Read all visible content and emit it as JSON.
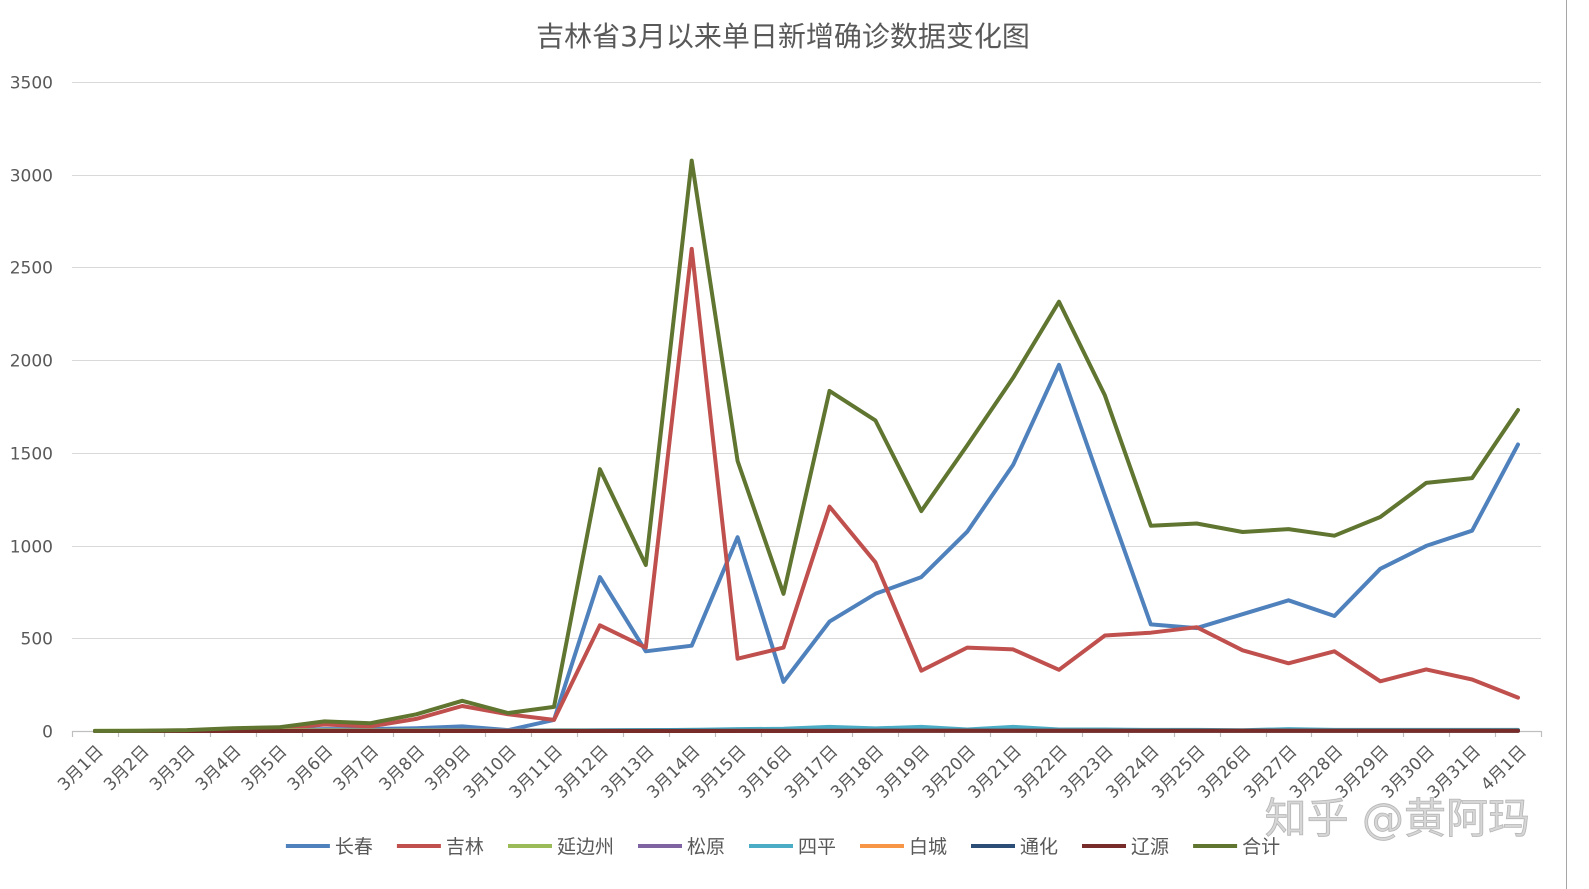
{
  "chart_data": {
    "type": "line",
    "title": "吉林省3月以来单日新增确诊数据变化图",
    "xlabel": "",
    "ylabel": "",
    "ylim": [
      0,
      3500
    ],
    "yticks": [
      0,
      500,
      1000,
      1500,
      2000,
      2500,
      3000,
      3500
    ],
    "grid": true,
    "legend": "bottom",
    "categories": [
      "3月1日",
      "3月2日",
      "3月3日",
      "3月4日",
      "3月5日",
      "3月6日",
      "3月7日",
      "3月8日",
      "3月9日",
      "3月10日",
      "3月11日",
      "3月12日",
      "3月13日",
      "3月14日",
      "3月15日",
      "3月16日",
      "3月17日",
      "3月18日",
      "3月19日",
      "3月20日",
      "3月21日",
      "3月22日",
      "3月23日",
      "3月24日",
      "3月25日",
      "3月26日",
      "3月27日",
      "3月28日",
      "3月29日",
      "3月30日",
      "3月31日",
      "4月1日"
    ],
    "series": [
      {
        "name": "长春",
        "color": "#4f81bd",
        "values": [
          0,
          0,
          1,
          3,
          5,
          10,
          10,
          15,
          25,
          5,
          60,
          830,
          430,
          460,
          1045,
          265,
          590,
          740,
          830,
          1075,
          1435,
          1975,
          1270,
          575,
          555,
          630,
          705,
          620,
          875,
          998,
          1080,
          1545
        ]
      },
      {
        "name": "吉林",
        "color": "#c0504d",
        "values": [
          0,
          0,
          2,
          8,
          12,
          35,
          25,
          65,
          135,
          90,
          60,
          570,
          450,
          2600,
          390,
          450,
          1210,
          910,
          325,
          450,
          440,
          330,
          515,
          530,
          560,
          435,
          365,
          430,
          268,
          332,
          278,
          180
        ]
      },
      {
        "name": "延边州",
        "color": "#9bbb59",
        "values": [
          1,
          1,
          2,
          3,
          3,
          5,
          4,
          5,
          3,
          2,
          4,
          3,
          4,
          6,
          4,
          5,
          6,
          5,
          4,
          3,
          4,
          3,
          3,
          2,
          2,
          2,
          3,
          2,
          2,
          2,
          2,
          2
        ]
      },
      {
        "name": "松原",
        "color": "#8064a2",
        "values": [
          0,
          0,
          0,
          0,
          0,
          1,
          1,
          2,
          1,
          1,
          2,
          2,
          2,
          3,
          3,
          2,
          3,
          3,
          2,
          2,
          2,
          1,
          1,
          1,
          1,
          1,
          1,
          1,
          1,
          1,
          1,
          1
        ]
      },
      {
        "name": "四平",
        "color": "#4bacc6",
        "values": [
          0,
          0,
          0,
          0,
          0,
          0,
          0,
          1,
          0,
          0,
          1,
          3,
          5,
          6,
          10,
          12,
          22,
          14,
          22,
          8,
          22,
          8,
          8,
          6,
          6,
          4,
          10,
          6,
          6,
          6,
          6,
          6
        ]
      },
      {
        "name": "白城",
        "color": "#f79646",
        "values": [
          0,
          0,
          0,
          0,
          0,
          0,
          0,
          0,
          0,
          0,
          0,
          0,
          0,
          0,
          1,
          1,
          1,
          1,
          1,
          1,
          1,
          1,
          1,
          1,
          1,
          1,
          1,
          1,
          1,
          1,
          1,
          1
        ]
      },
      {
        "name": "通化",
        "color": "#2c4d75",
        "values": [
          0,
          0,
          0,
          0,
          0,
          0,
          0,
          0,
          0,
          0,
          0,
          1,
          1,
          1,
          1,
          1,
          1,
          1,
          1,
          1,
          1,
          1,
          1,
          1,
          1,
          1,
          1,
          1,
          1,
          1,
          1,
          1
        ]
      },
      {
        "name": "辽源",
        "color": "#772c2a",
        "values": [
          0,
          0,
          0,
          0,
          0,
          0,
          0,
          0,
          0,
          0,
          0,
          0,
          0,
          0,
          0,
          0,
          0,
          1,
          1,
          1,
          1,
          1,
          1,
          1,
          1,
          1,
          1,
          1,
          1,
          1,
          1,
          1
        ]
      },
      {
        "name": "合计",
        "color": "#5f7530",
        "values": [
          0,
          1,
          5,
          15,
          20,
          52,
          42,
          90,
          163,
          97,
          130,
          1412,
          895,
          3076,
          1456,
          740,
          1834,
          1675,
          1186,
          1540,
          1905,
          2315,
          1810,
          1107,
          1119,
          1073,
          1089,
          1053,
          1154,
          1338,
          1364,
          1731
        ]
      }
    ]
  },
  "watermark": "知乎 @黄阿玛"
}
